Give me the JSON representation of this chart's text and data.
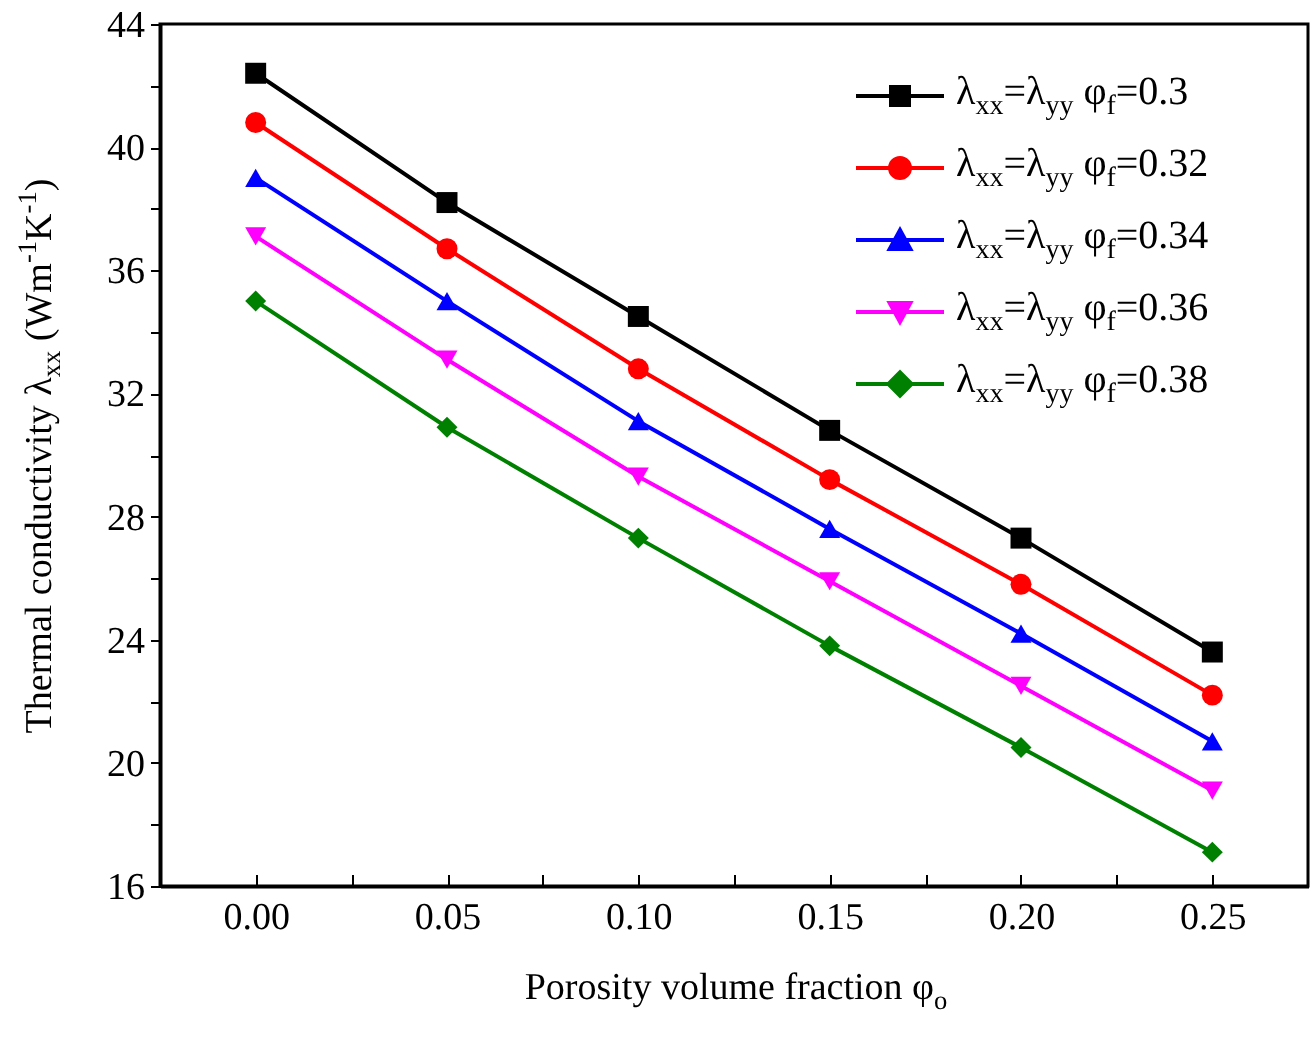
{
  "chart_data": {
    "type": "line",
    "xlabel": "Porosity volume fraction φ$_{o}$",
    "ylabel": "Thermal conductivity λ$_{xx}$ (Wm$^{-1}$K$^{-1}$)",
    "x": [
      0,
      0.05,
      0.1,
      0.15,
      0.2,
      0.25
    ],
    "xlim": [
      -0.025,
      0.275
    ],
    "xticks": [
      {
        "value": 0,
        "label": "0.00"
      },
      {
        "value": 0.025,
        "label": null
      },
      {
        "value": 0.05,
        "label": "0.05"
      },
      {
        "value": 0.075,
        "label": null
      },
      {
        "value": 0.1,
        "label": "0.10"
      },
      {
        "value": 0.125,
        "label": null
      },
      {
        "value": 0.15,
        "label": "0.15"
      },
      {
        "value": 0.175,
        "label": null
      },
      {
        "value": 0.2,
        "label": "0.20"
      },
      {
        "value": 0.225,
        "label": null
      },
      {
        "value": 0.25,
        "label": "0.25"
      }
    ],
    "ylim": [
      16,
      44
    ],
    "yticks": [
      16,
      {
        "value": 18,
        "label": null
      },
      20,
      {
        "value": 22,
        "label": null
      },
      24,
      {
        "value": 26,
        "label": null
      },
      28,
      {
        "value": 30,
        "label": null
      },
      32,
      {
        "value": 34,
        "label": null
      },
      36,
      {
        "value": 38,
        "label": null
      },
      40,
      {
        "value": 42,
        "label": null
      },
      44
    ],
    "grid": false,
    "legend": "top right",
    "line_style": "solid",
    "series": [
      {
        "name": "λ$_{xx}$=λ$_{yy}$ φ$_{f}$=0.3",
        "color": "#000000",
        "marker": "square",
        "values": [
          42.4,
          38.2,
          34.5,
          30.8,
          27.3,
          23.6
        ]
      },
      {
        "name": "λ$_{xx}$=λ$_{yy}$ φ$_{f}$=0.32",
        "color": "#ff0000",
        "marker": "circle",
        "values": [
          40.8,
          36.7,
          32.8,
          29.2,
          25.8,
          22.2
        ]
      },
      {
        "name": "λ$_{xx}$=λ$_{yy}$ φ$_{f}$=0.34",
        "color": "#0000ff",
        "marker": "triangle",
        "values": [
          39.0,
          35.0,
          31.1,
          27.6,
          24.2,
          20.7
        ]
      },
      {
        "name": "λ$_{xx}$=λ$_{yy}$ φ$_{f}$=0.36",
        "color": "#ff00ff",
        "marker": "triangle-down",
        "values": [
          37.1,
          33.1,
          29.3,
          25.9,
          22.5,
          19.1
        ]
      },
      {
        "name": "λ$_{xx}$=λ$_{yy}$ φ$_{f}$=0.38",
        "color": "#008000",
        "marker": "diamond",
        "values": [
          35.0,
          30.9,
          27.3,
          23.8,
          20.5,
          17.1
        ]
      }
    ]
  }
}
